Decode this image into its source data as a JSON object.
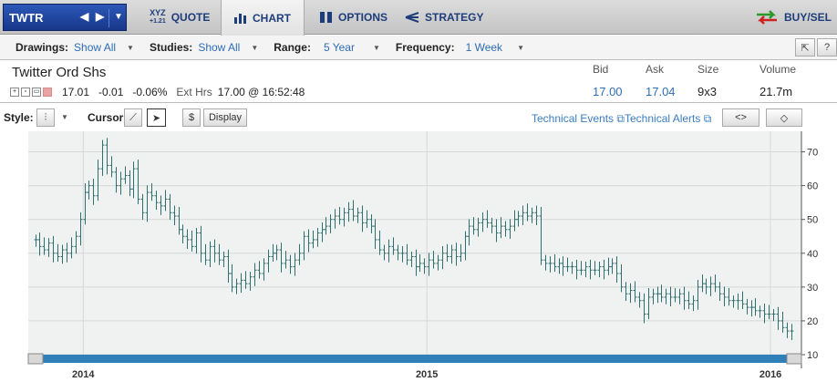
{
  "nav": {
    "symbol": "TWTR",
    "tabs": [
      {
        "label": "QUOTE",
        "icon": "xyz-quote-icon",
        "icon_text_top": "XYZ",
        "icon_text_bottom": "+1.21"
      },
      {
        "label": "CHART",
        "icon": "bar-chart-icon"
      },
      {
        "label": "OPTIONS",
        "icon": "options-icon"
      },
      {
        "label": "STRATEGY",
        "icon": "strategy-icon"
      }
    ],
    "buysell": "BUY/SEL"
  },
  "controls": {
    "drawings_label": "Drawings:",
    "drawings_value": "Show All",
    "studies_label": "Studies:",
    "studies_value": "Show All",
    "range_label": "Range:",
    "range_value": "5 Year",
    "frequency_label": "Frequency:",
    "frequency_value": "1 Week"
  },
  "quote": {
    "name": "Twitter Ord Shs",
    "last": "17.01",
    "change": "-0.01",
    "change_pct": "-0.06%",
    "ext_label": "Ext Hrs",
    "ext_value": "17.00 @ 16:52:48",
    "bid_label": "Bid",
    "bid": "17.00",
    "ask_label": "Ask",
    "ask": "17.04",
    "size_label": "Size",
    "size": "9x3",
    "volume_label": "Volume",
    "volume": "21.7m"
  },
  "chart_toolbar": {
    "style_label": "Style:",
    "cursor_label": "Cursor:",
    "dollar": "$",
    "display": "Display",
    "technical_events": "Technical Events",
    "technical_alerts": "Technical Alerts"
  },
  "colors": {
    "ohlc": "#2f6f6f",
    "scrollbar": "#2f7fb8",
    "plot_bg": "#f0f2f1"
  },
  "chart_data": {
    "type": "ohlc",
    "y_ticks": [
      "70",
      "60",
      "50",
      "40",
      "30",
      "20",
      "10"
    ],
    "ylim": [
      10,
      75
    ],
    "x_labels": [
      "2014",
      "2015",
      "2016"
    ],
    "x_tick_years": [
      2014.0,
      2015.0,
      2016.0
    ],
    "xlim": [
      2013.84,
      2016.09
    ],
    "grid": true,
    "axis_position": "right",
    "frequency": "weekly",
    "close": [
      44,
      42,
      41,
      43,
      40,
      39,
      41,
      40,
      42,
      45,
      50,
      58,
      60,
      57,
      65,
      72,
      66,
      64,
      60,
      62,
      63,
      59,
      65,
      56,
      52,
      58,
      57,
      55,
      54,
      56,
      52,
      51,
      47,
      45,
      44,
      42,
      46,
      40,
      38,
      42,
      40,
      38,
      39,
      34,
      30,
      31,
      32,
      31,
      33,
      35,
      34,
      37,
      39,
      40,
      41,
      37,
      38,
      36,
      38,
      40,
      45,
      43,
      44,
      46,
      47,
      48,
      50,
      51,
      50,
      52,
      53,
      51,
      52,
      49,
      50,
      48,
      44,
      41,
      40,
      42,
      41,
      40,
      40,
      38,
      39,
      36,
      37,
      36,
      38,
      37,
      38,
      40,
      39,
      41,
      39,
      40,
      45,
      48,
      47,
      49,
      50,
      49,
      48,
      46,
      48,
      47,
      48,
      50,
      51,
      52,
      51,
      52,
      51,
      38,
      37,
      37,
      36,
      37,
      36,
      36,
      36,
      35,
      35,
      36,
      35,
      35,
      36,
      35,
      36,
      37,
      34,
      30,
      28,
      29,
      27,
      26,
      22,
      27,
      28,
      28,
      27,
      28,
      27,
      27,
      28,
      26,
      25,
      26,
      30,
      31,
      30,
      31,
      30,
      28,
      27,
      26,
      26,
      26,
      25,
      24,
      24,
      23,
      23,
      22,
      22,
      22,
      20,
      18,
      17,
      17
    ]
  }
}
